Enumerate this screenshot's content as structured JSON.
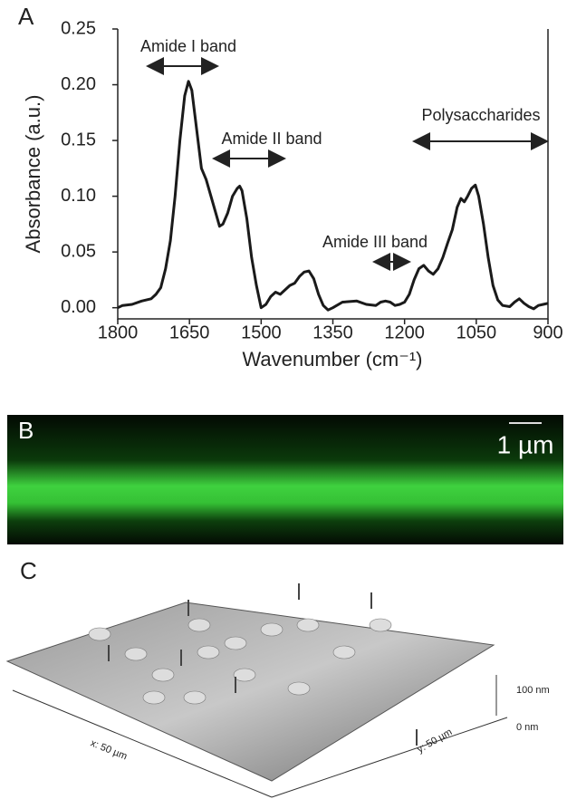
{
  "chart_data": {
    "type": "line",
    "panel_label": "A",
    "x_label": "Wavenumber (cm⁻¹)",
    "y_label": "Absorbance (a.u.)",
    "x": [
      1800,
      1790,
      1770,
      1750,
      1730,
      1720,
      1710,
      1700,
      1690,
      1680,
      1670,
      1660,
      1652,
      1645,
      1635,
      1625,
      1615,
      1605,
      1595,
      1587,
      1580,
      1570,
      1560,
      1550,
      1545,
      1540,
      1530,
      1520,
      1510,
      1500,
      1490,
      1480,
      1470,
      1460,
      1450,
      1440,
      1430,
      1420,
      1410,
      1400,
      1390,
      1380,
      1370,
      1360,
      1350,
      1330,
      1300,
      1280,
      1260,
      1250,
      1240,
      1230,
      1220,
      1210,
      1200,
      1190,
      1180,
      1170,
      1160,
      1150,
      1140,
      1130,
      1120,
      1110,
      1100,
      1090,
      1082,
      1075,
      1068,
      1060,
      1052,
      1045,
      1035,
      1025,
      1015,
      1005,
      995,
      980,
      970,
      960,
      950,
      940,
      930,
      920,
      910,
      900
    ],
    "series": [
      {
        "color": "#1a1a1a",
        "values": [
          0.0,
          0.002,
          0.003,
          0.006,
          0.008,
          0.012,
          0.018,
          0.035,
          0.06,
          0.1,
          0.15,
          0.19,
          0.203,
          0.195,
          0.16,
          0.125,
          0.115,
          0.1,
          0.085,
          0.073,
          0.075,
          0.085,
          0.1,
          0.107,
          0.109,
          0.105,
          0.08,
          0.045,
          0.02,
          0.0,
          0.003,
          0.01,
          0.014,
          0.012,
          0.016,
          0.02,
          0.022,
          0.028,
          0.032,
          0.033,
          0.026,
          0.012,
          0.002,
          -0.002,
          0.0,
          0.005,
          0.006,
          0.003,
          0.002,
          0.005,
          0.006,
          0.005,
          0.002,
          0.003,
          0.005,
          0.012,
          0.025,
          0.035,
          0.038,
          0.033,
          0.03,
          0.035,
          0.045,
          0.058,
          0.07,
          0.09,
          0.098,
          0.095,
          0.1,
          0.107,
          0.11,
          0.1,
          0.075,
          0.045,
          0.02,
          0.007,
          0.002,
          0.001,
          0.005,
          0.008,
          0.004,
          0.001,
          -0.001,
          0.002,
          0.003,
          0.004
        ]
      }
    ],
    "xlim": [
      1800,
      900
    ],
    "xticks": [
      1800,
      1650,
      1500,
      1350,
      1200,
      1050,
      900
    ],
    "ylim": [
      -0.01,
      0.25
    ],
    "yticks": [
      {
        "value": 0,
        "label": "0.00"
      },
      {
        "value": 0.05,
        "label": "0.05"
      },
      {
        "value": 0.1,
        "label": "0.10"
      },
      {
        "value": 0.15,
        "label": "0.15"
      },
      {
        "value": 0.2,
        "label": "0.20"
      },
      {
        "value": 0.25,
        "label": "0.25"
      }
    ],
    "annotations": [
      "Amide I band",
      "Amide II band",
      "Amide III band",
      "Polysaccharides"
    ]
  },
  "panel_b": {
    "panel_label": "B",
    "scale_bar": "1 µm"
  },
  "panel_c": {
    "panel_label": "C",
    "z_top": "100 nm",
    "z_bottom": "0 nm",
    "x_axis": "x: 50 µm",
    "y_axis": "y: 50 µm"
  }
}
